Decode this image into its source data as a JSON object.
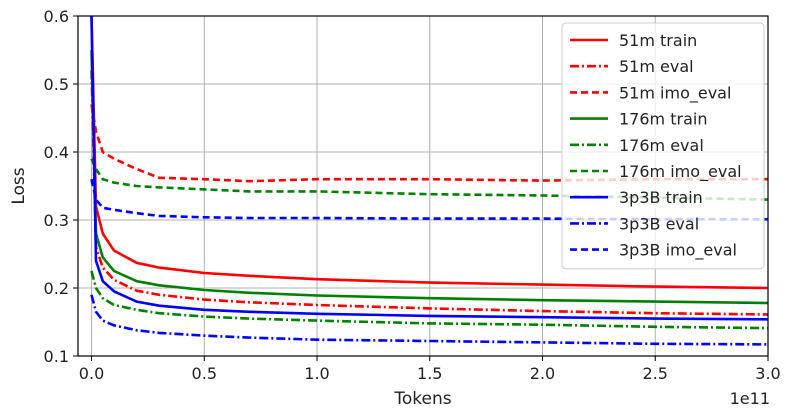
{
  "chart_data": {
    "type": "line",
    "title": "",
    "xlabel": "Tokens",
    "ylabel": "Loss",
    "x_offset_label": "1e11",
    "xlim": [
      -0.06,
      3.0
    ],
    "ylim": [
      0.1,
      0.6
    ],
    "x_ticks": [
      "0.0",
      "0.5",
      "1.0",
      "1.5",
      "2.0",
      "2.5",
      "3.0"
    ],
    "x_tick_values": [
      0,
      0.5,
      1.0,
      1.5,
      2.0,
      2.5,
      3.0
    ],
    "y_ticks": [
      "0.1",
      "0.2",
      "0.3",
      "0.4",
      "0.5",
      "0.6"
    ],
    "y_tick_values": [
      0.1,
      0.2,
      0.3,
      0.4,
      0.5,
      0.6
    ],
    "grid": true,
    "legend_position": "top-right",
    "x": [
      0.0,
      0.02,
      0.05,
      0.1,
      0.2,
      0.3,
      0.5,
      0.7,
      1.0,
      1.5,
      2.0,
      2.5,
      3.0
    ],
    "series": [
      {
        "name": "51m train",
        "color": "#ff0000",
        "style": "solid",
        "values": [
          0.6,
          0.32,
          0.28,
          0.255,
          0.237,
          0.23,
          0.222,
          0.218,
          0.213,
          0.208,
          0.205,
          0.202,
          0.2
        ]
      },
      {
        "name": "51m eval",
        "color": "#ff0000",
        "style": "dashdot",
        "values": [
          0.52,
          0.26,
          0.23,
          0.212,
          0.196,
          0.19,
          0.183,
          0.179,
          0.175,
          0.17,
          0.166,
          0.163,
          0.161
        ]
      },
      {
        "name": "51m imo_eval",
        "color": "#ff0000",
        "style": "dashed",
        "values": [
          0.47,
          0.43,
          0.4,
          0.39,
          0.375,
          0.362,
          0.36,
          0.357,
          0.36,
          0.36,
          0.358,
          0.36,
          0.36
        ]
      },
      {
        "name": "176m train",
        "color": "#008000",
        "style": "solid",
        "values": [
          0.55,
          0.28,
          0.245,
          0.225,
          0.21,
          0.204,
          0.197,
          0.193,
          0.189,
          0.185,
          0.182,
          0.18,
          0.178
        ]
      },
      {
        "name": "176m eval",
        "color": "#008000",
        "style": "dashdot",
        "values": [
          0.225,
          0.2,
          0.185,
          0.175,
          0.168,
          0.163,
          0.158,
          0.155,
          0.152,
          0.148,
          0.146,
          0.143,
          0.141
        ]
      },
      {
        "name": "176m imo_eval",
        "color": "#008000",
        "style": "dashed",
        "values": [
          0.39,
          0.375,
          0.36,
          0.355,
          0.35,
          0.348,
          0.345,
          0.342,
          0.342,
          0.338,
          0.336,
          0.333,
          0.33
        ]
      },
      {
        "name": "3p3B train",
        "color": "#0000ff",
        "style": "solid",
        "values": [
          0.6,
          0.24,
          0.21,
          0.195,
          0.18,
          0.174,
          0.168,
          0.165,
          0.162,
          0.159,
          0.157,
          0.155,
          0.154
        ]
      },
      {
        "name": "3p3B eval",
        "color": "#0000ff",
        "style": "dashdot",
        "values": [
          0.19,
          0.165,
          0.152,
          0.145,
          0.138,
          0.134,
          0.13,
          0.127,
          0.124,
          0.122,
          0.12,
          0.118,
          0.117
        ]
      },
      {
        "name": "3p3B imo_eval",
        "color": "#0000ff",
        "style": "dashed",
        "values": [
          0.36,
          0.33,
          0.318,
          0.315,
          0.31,
          0.306,
          0.304,
          0.303,
          0.303,
          0.302,
          0.302,
          0.301,
          0.301
        ]
      }
    ]
  }
}
